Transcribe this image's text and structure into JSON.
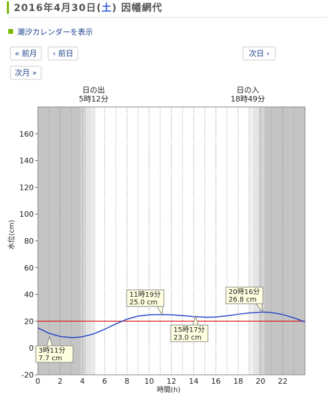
{
  "header": {
    "date_prefix": "2016年4月30日(",
    "weekday": "土",
    "date_suffix": ")",
    "place": "因幡網代"
  },
  "calendar_link": "潮汐カレンダーを表示",
  "nav": {
    "prev_month": "« 前月",
    "prev_day": "‹ 前日",
    "next_day": "次日 ›",
    "next_month": "次月 »"
  },
  "chart_data": {
    "type": "line",
    "y_label": "水位(cm)",
    "x_label": "時間(h)",
    "sunrise_label": "日の出",
    "sunrise_time": "5時12分",
    "sunset_label": "日の入",
    "sunset_time": "18時49分",
    "x": [
      0,
      1,
      2,
      3,
      3.18,
      4,
      5,
      6,
      7,
      8,
      9,
      10,
      11,
      11.32,
      12,
      13,
      14,
      15,
      15.28,
      16,
      17,
      18,
      19,
      20,
      20.27,
      21,
      22,
      23,
      24
    ],
    "series": [
      {
        "color": "#2a45c8",
        "values": [
          15,
          11,
          8.6,
          7.8,
          7.7,
          8.4,
          10.5,
          14,
          18,
          21.5,
          23.8,
          24.8,
          25,
          25,
          24.8,
          24.2,
          23.4,
          23.05,
          23,
          23.2,
          24,
          25.2,
          26.2,
          26.7,
          26.8,
          26.5,
          25,
          22.5,
          19.5
        ]
      }
    ],
    "reference_line": {
      "value": 20,
      "color": "#e02020"
    },
    "annotations": [
      {
        "time": "3時11分",
        "level": "7.7 cm"
      },
      {
        "time": "11時19分",
        "level": "25.0 cm"
      },
      {
        "time": "15時17分",
        "level": "23.0 cm"
      },
      {
        "time": "20時16分",
        "level": "26.8 cm"
      }
    ],
    "xlim": [
      0,
      24
    ],
    "ylim": [
      -20,
      180
    ],
    "xticks": [
      0,
      2,
      4,
      6,
      8,
      10,
      12,
      14,
      16,
      18,
      20,
      22
    ],
    "x_minor_ticks": [
      1,
      3,
      5,
      7,
      9,
      11,
      13,
      15,
      17,
      19,
      21,
      23
    ],
    "yticks": [
      -20,
      0,
      20,
      40,
      60,
      80,
      100,
      120,
      140,
      160
    ]
  }
}
